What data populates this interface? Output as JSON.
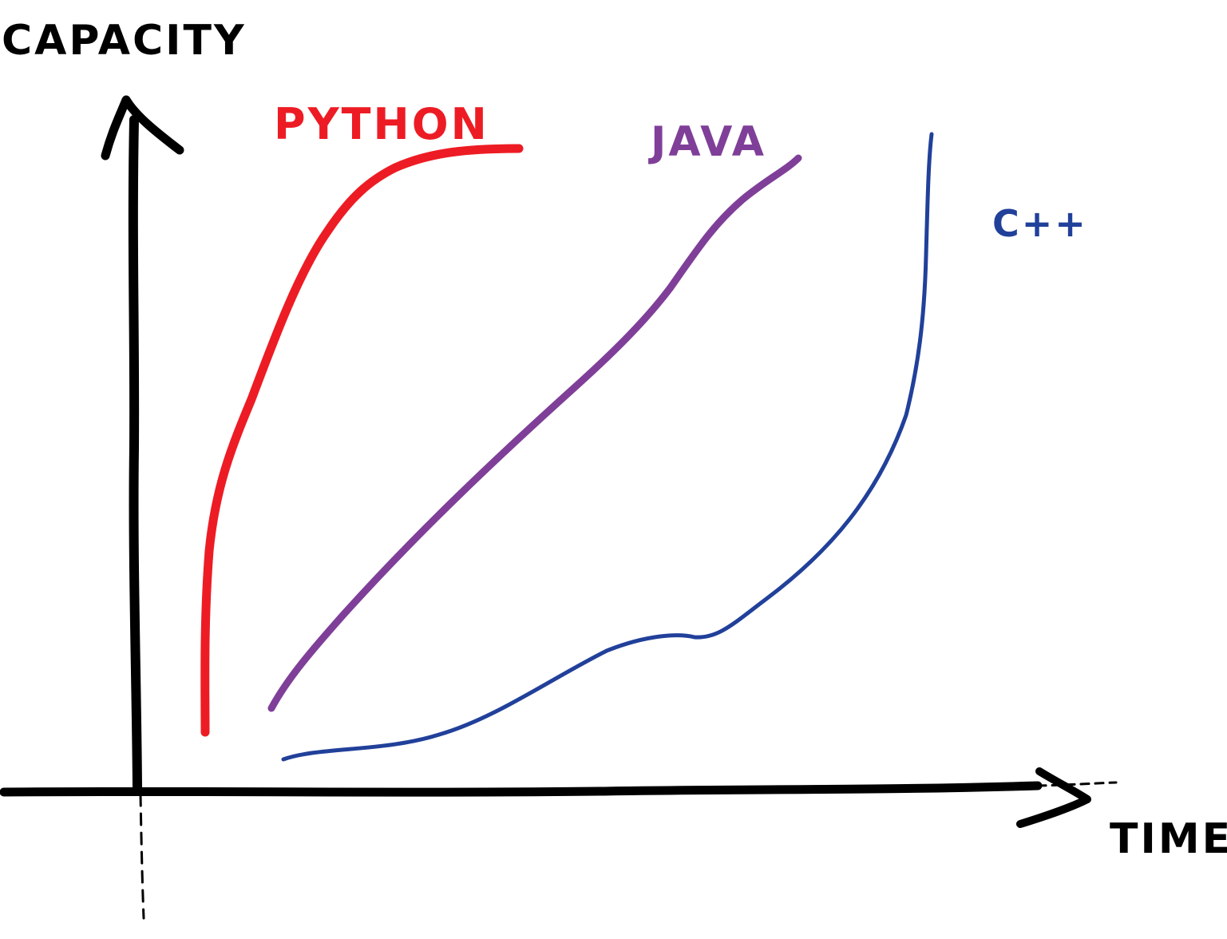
{
  "chart_data": {
    "type": "line",
    "title": "",
    "xlabel": "TIME",
    "ylabel": "CAPACITY",
    "xlim": [
      0,
      100
    ],
    "ylim": [
      0,
      100
    ],
    "grid": false,
    "legend": "labels-at-line-ends",
    "series": [
      {
        "name": "PYTHON",
        "color": "#ed1c24",
        "points": [
          [
            6,
            7
          ],
          [
            6,
            25
          ],
          [
            7,
            41
          ],
          [
            10,
            52
          ],
          [
            14,
            66
          ],
          [
            18,
            80
          ],
          [
            24,
            89
          ],
          [
            32,
            93
          ],
          [
            38,
            94
          ]
        ]
      },
      {
        "name": "JAVA",
        "color": "#7f3f98",
        "points": [
          [
            12,
            12
          ],
          [
            16,
            20
          ],
          [
            24,
            32
          ],
          [
            32,
            43
          ],
          [
            40,
            53
          ],
          [
            48,
            63
          ],
          [
            55,
            72
          ],
          [
            60,
            80
          ],
          [
            66,
            87
          ],
          [
            73,
            93
          ]
        ]
      },
      {
        "name": "C++",
        "color": "#21409a",
        "points": [
          [
            13,
            4
          ],
          [
            18,
            5
          ],
          [
            25,
            6
          ],
          [
            31,
            9
          ],
          [
            37,
            13
          ],
          [
            45,
            18
          ],
          [
            51,
            19
          ],
          [
            55,
            21
          ],
          [
            62,
            29
          ],
          [
            68,
            39
          ],
          [
            72,
            51
          ],
          [
            73,
            63
          ],
          [
            73,
            77
          ],
          [
            74,
            86
          ],
          [
            74,
            94
          ]
        ]
      }
    ]
  }
}
